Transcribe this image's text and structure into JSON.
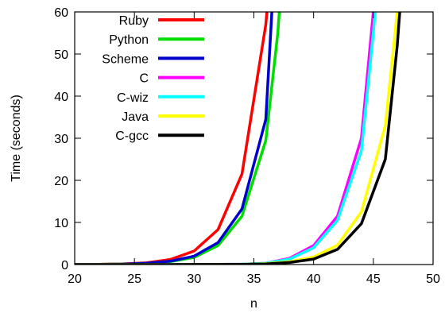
{
  "chart_data": {
    "type": "line",
    "title": "",
    "xlabel": "n",
    "ylabel": "Time (seconds)",
    "xlim": [
      20,
      50
    ],
    "ylim": [
      0,
      60
    ],
    "xticks": [
      20,
      25,
      30,
      35,
      40,
      45,
      50
    ],
    "yticks": [
      0,
      10,
      20,
      30,
      40,
      50,
      60
    ],
    "grid": false,
    "legend_position": "top-left",
    "series": [
      {
        "name": "Ruby",
        "color": "#ff0000",
        "x": [
          20,
          22,
          24,
          26,
          28,
          30,
          32,
          34,
          36,
          37
        ],
        "y": [
          0.0,
          0.05,
          0.15,
          0.4,
          1.2,
          3.2,
          8.3,
          21.5,
          57,
          90
        ]
      },
      {
        "name": "Python",
        "color": "#00dd00",
        "x": [
          20,
          22,
          24,
          26,
          28,
          30,
          32,
          34,
          36,
          37,
          38
        ],
        "y": [
          0.0,
          0.03,
          0.1,
          0.25,
          0.7,
          1.7,
          4.5,
          11.5,
          29.5,
          55,
          95
        ]
      },
      {
        "name": "Scheme",
        "color": "#0000cc",
        "x": [
          20,
          22,
          24,
          26,
          28,
          30,
          32,
          34,
          36,
          37
        ],
        "y": [
          0.0,
          0.03,
          0.1,
          0.3,
          0.8,
          2.0,
          5.2,
          13.2,
          34.5,
          85
        ]
      },
      {
        "name": "C",
        "color": "#ff00ff",
        "x": [
          20,
          22,
          24,
          26,
          28,
          30,
          32,
          34,
          36,
          38,
          40,
          42,
          44,
          45,
          46
        ],
        "y": [
          0,
          0,
          0,
          0,
          0,
          0.02,
          0.05,
          0.1,
          0.3,
          1.5,
          4.5,
          11.5,
          30,
          60,
          95
        ]
      },
      {
        "name": "C-wiz",
        "color": "#00ffff",
        "x": [
          20,
          22,
          24,
          26,
          28,
          30,
          32,
          34,
          36,
          38,
          40,
          42,
          44,
          45,
          46
        ],
        "y": [
          0,
          0,
          0,
          0,
          0,
          0.02,
          0.05,
          0.1,
          0.3,
          1.3,
          4.0,
          10.5,
          27,
          55,
          90
        ]
      },
      {
        "name": "Java",
        "color": "#ffff00",
        "x": [
          20,
          22,
          24,
          26,
          28,
          30,
          32,
          34,
          36,
          38,
          40,
          42,
          44,
          46,
          47
        ],
        "y": [
          0,
          0,
          0,
          0,
          0,
          0.01,
          0.02,
          0.05,
          0.2,
          0.7,
          1.8,
          4.6,
          12.5,
          33,
          60
        ]
      },
      {
        "name": "C-gcc",
        "color": "#000000",
        "x": [
          20,
          22,
          24,
          26,
          28,
          30,
          32,
          34,
          36,
          38,
          40,
          42,
          44,
          46,
          47,
          48
        ],
        "y": [
          0,
          0,
          0,
          0,
          0,
          0.01,
          0.02,
          0.05,
          0.15,
          0.5,
          1.3,
          3.6,
          9.7,
          25,
          52,
          90
        ]
      }
    ]
  }
}
